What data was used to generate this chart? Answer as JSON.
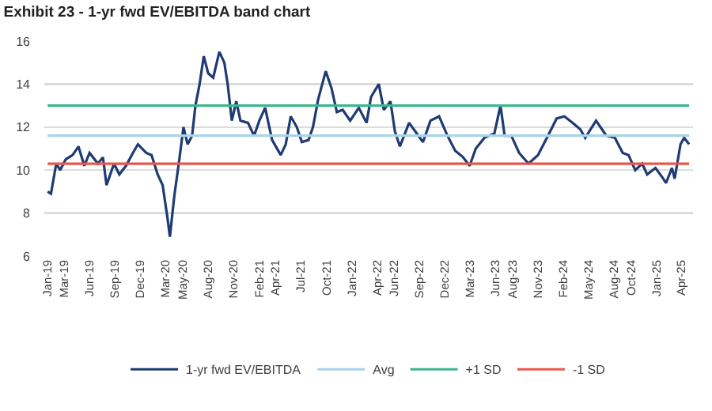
{
  "chart_data": {
    "type": "line",
    "title": "Exhibit 23 - 1-yr fwd EV/EBITDA band chart",
    "xlim": [
      "2018-12-20",
      "2025-05-12"
    ],
    "ylim": [
      6,
      16
    ],
    "yticks": [
      6,
      8,
      10,
      12,
      14,
      16
    ],
    "xticks": [
      {
        "value": "2019-01-01",
        "label": "Jan-19"
      },
      {
        "value": "2019-03-01",
        "label": "Mar-19"
      },
      {
        "value": "2019-06-01",
        "label": "Jun-19"
      },
      {
        "value": "2019-09-01",
        "label": "Sep-19"
      },
      {
        "value": "2019-12-01",
        "label": "Dec-19"
      },
      {
        "value": "2020-03-01",
        "label": "Mar-20"
      },
      {
        "value": "2020-05-01",
        "label": "May-20"
      },
      {
        "value": "2020-08-01",
        "label": "Aug-20"
      },
      {
        "value": "2020-11-01",
        "label": "Nov-20"
      },
      {
        "value": "2021-02-01",
        "label": "Feb-21"
      },
      {
        "value": "2021-04-01",
        "label": "Apr-21"
      },
      {
        "value": "2021-07-01",
        "label": "Jul-21"
      },
      {
        "value": "2021-10-01",
        "label": "Oct-21"
      },
      {
        "value": "2022-01-01",
        "label": "Jan-22"
      },
      {
        "value": "2022-04-01",
        "label": "Apr-22"
      },
      {
        "value": "2022-06-01",
        "label": "Jun-22"
      },
      {
        "value": "2022-09-01",
        "label": "Sep-22"
      },
      {
        "value": "2022-12-01",
        "label": "Dec-22"
      },
      {
        "value": "2023-03-01",
        "label": "Mar-23"
      },
      {
        "value": "2023-06-01",
        "label": "Jun-23"
      },
      {
        "value": "2023-08-01",
        "label": "Aug-23"
      },
      {
        "value": "2023-11-01",
        "label": "Nov-23"
      },
      {
        "value": "2024-02-01",
        "label": "Feb-24"
      },
      {
        "value": "2024-05-01",
        "label": "May-24"
      },
      {
        "value": "2024-08-01",
        "label": "Aug-24"
      },
      {
        "value": "2024-10-01",
        "label": "Oct-24"
      },
      {
        "value": "2025-01-01",
        "label": "Jan-25"
      },
      {
        "value": "2025-04-01",
        "label": "Apr-25"
      }
    ],
    "grid": "y",
    "legend": "bottom",
    "marker": "none",
    "line_style": "solid",
    "series": [
      {
        "name": "1-yr fwd EV/EBITDA",
        "color": "#1f3b73",
        "x": [
          "2019-01-01",
          "2019-01-13",
          "2019-02-01",
          "2019-02-15",
          "2019-03-07",
          "2019-04-01",
          "2019-04-22",
          "2019-05-13",
          "2019-06-01",
          "2019-07-01",
          "2019-07-19",
          "2019-08-01",
          "2019-08-28",
          "2019-09-16",
          "2019-10-10",
          "2019-11-04",
          "2019-11-22",
          "2019-12-22",
          "2020-01-10",
          "2020-02-01",
          "2020-02-19",
          "2020-03-07",
          "2020-03-16",
          "2020-04-01",
          "2020-04-19",
          "2020-05-04",
          "2020-05-19",
          "2020-06-04",
          "2020-06-16",
          "2020-07-01",
          "2020-07-16",
          "2020-08-01",
          "2020-08-19",
          "2020-09-10",
          "2020-09-28",
          "2020-10-10",
          "2020-10-25",
          "2020-11-10",
          "2020-11-25",
          "2020-12-22",
          "2021-01-13",
          "2021-02-01",
          "2021-02-22",
          "2021-03-19",
          "2021-04-19",
          "2021-05-07",
          "2021-05-25",
          "2021-06-16",
          "2021-07-04",
          "2021-07-28",
          "2021-08-13",
          "2021-09-01",
          "2021-09-28",
          "2021-10-19",
          "2021-11-07",
          "2021-11-28",
          "2021-12-25",
          "2022-01-25",
          "2022-02-22",
          "2022-03-10",
          "2022-04-07",
          "2022-04-25",
          "2022-05-19",
          "2022-06-04",
          "2022-06-22",
          "2022-07-25",
          "2022-08-22",
          "2022-09-13",
          "2022-10-10",
          "2022-11-10",
          "2022-12-10",
          "2023-01-07",
          "2023-02-04",
          "2023-02-28",
          "2023-03-22",
          "2023-04-22",
          "2023-05-28",
          "2023-06-19",
          "2023-07-04",
          "2023-07-28",
          "2023-08-25",
          "2023-09-28",
          "2023-11-01",
          "2023-12-07",
          "2024-01-07",
          "2024-02-04",
          "2024-03-04",
          "2024-04-01",
          "2024-04-19",
          "2024-05-28",
          "2024-07-04",
          "2024-08-04",
          "2024-09-01",
          "2024-09-22",
          "2024-10-16",
          "2024-11-10",
          "2024-11-28",
          "2024-12-28",
          "2025-01-25",
          "2025-02-04",
          "2025-02-25",
          "2025-03-07",
          "2025-03-28",
          "2025-04-10",
          "2025-04-28"
        ],
        "values": [
          9.0,
          8.9,
          10.3,
          10.0,
          10.5,
          10.7,
          11.1,
          10.2,
          10.8,
          10.3,
          10.6,
          9.3,
          10.3,
          9.8,
          10.2,
          10.8,
          11.2,
          10.8,
          10.7,
          9.8,
          9.3,
          7.8,
          6.9,
          8.8,
          10.5,
          12.0,
          11.2,
          11.6,
          13.0,
          14.0,
          15.3,
          14.5,
          14.3,
          15.5,
          15.0,
          14.0,
          12.3,
          13.2,
          12.3,
          12.2,
          11.6,
          12.3,
          12.9,
          11.4,
          10.7,
          11.2,
          12.5,
          12.0,
          11.3,
          11.4,
          12.0,
          13.3,
          14.6,
          13.8,
          12.7,
          12.8,
          12.3,
          12.9,
          12.2,
          13.4,
          14.0,
          12.8,
          13.2,
          11.8,
          11.1,
          12.2,
          11.7,
          11.3,
          12.3,
          12.5,
          11.6,
          10.9,
          10.6,
          10.2,
          11.0,
          11.5,
          11.7,
          13.0,
          11.6,
          11.6,
          10.8,
          10.3,
          10.7,
          11.6,
          12.4,
          12.5,
          12.2,
          11.9,
          11.5,
          12.3,
          11.6,
          11.5,
          10.8,
          10.7,
          10.0,
          10.3,
          9.8,
          10.1,
          9.6,
          9.4,
          10.1,
          9.6,
          11.2,
          11.5,
          11.2
        ]
      },
      {
        "name": "Avg",
        "color": "#a9d3ea",
        "x": [
          "2019-01-01",
          "2025-04-28"
        ],
        "values": [
          11.6,
          11.6
        ]
      },
      {
        "name": "+1 SD",
        "color": "#3cb68c",
        "x": [
          "2019-01-01",
          "2025-04-28"
        ],
        "values": [
          13.0,
          13.0
        ]
      },
      {
        "name": "-1 SD",
        "color": "#e8574a",
        "x": [
          "2019-01-01",
          "2025-04-28"
        ],
        "values": [
          10.3,
          10.3
        ]
      }
    ]
  }
}
